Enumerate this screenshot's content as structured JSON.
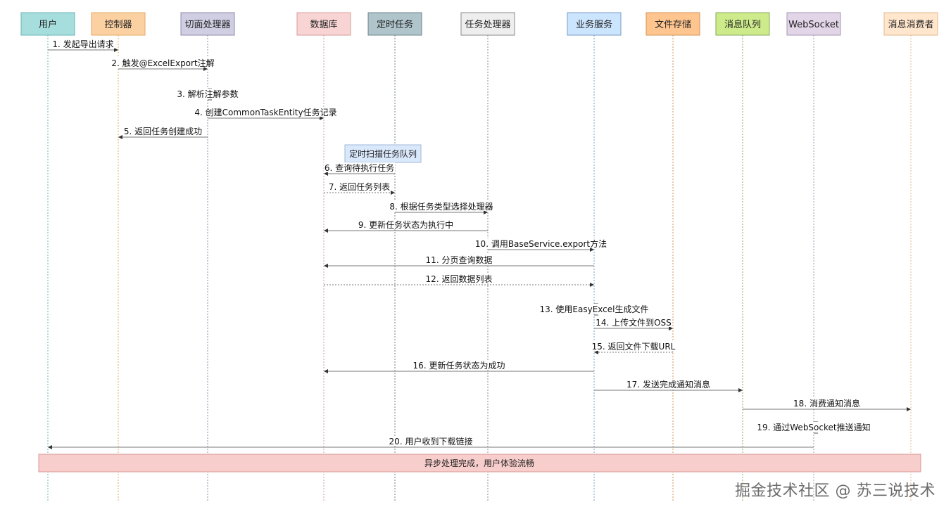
{
  "participants": [
    {
      "label": "用户",
      "fill": "#a6dede",
      "stroke": "#6ab3b3"
    },
    {
      "label": "控制器",
      "fill": "#fbd1a2",
      "stroke": "#e3a866"
    },
    {
      "label": "切面处理器",
      "fill": "#d0cee2",
      "stroke": "#8f8aa8"
    },
    {
      "label": "数据库",
      "fill": "#f9d4d4",
      "stroke": "#d69c9c"
    },
    {
      "label": "定时任务",
      "fill": "#b0c4cc",
      "stroke": "#6f858e"
    },
    {
      "label": "任务处理器",
      "fill": "#eeeeee",
      "stroke": "#8a8a8a"
    },
    {
      "label": "业务服务",
      "fill": "#cce5ff",
      "stroke": "#7a9cc4"
    },
    {
      "label": "文件存储",
      "fill": "#ffc58f",
      "stroke": "#d3935a"
    },
    {
      "label": "消息队列",
      "fill": "#cdeb8b",
      "stroke": "#8aa85a"
    },
    {
      "label": "WebSocket",
      "fill": "#e1d5e7",
      "stroke": "#a897b3"
    },
    {
      "label": "消息消费者",
      "fill": "#ffe6cc",
      "stroke": "#e0b98c"
    }
  ],
  "messages": [
    {
      "label": "1. 发起导出请求",
      "from": 0,
      "to": 1,
      "dashed": false
    },
    {
      "label": "2. 触发@ExcelExport注解",
      "from": 1,
      "to": 2,
      "dashed": false
    },
    {
      "label": "3. 解析注解参数",
      "from": 2,
      "to": 2,
      "dashed": false
    },
    {
      "label": "4. 创建CommonTaskEntity任务记录",
      "from": 2,
      "to": 3,
      "dashed": false
    },
    {
      "label": "5. 返回任务创建成功",
      "from": 2,
      "to": 1,
      "dashed": false
    },
    {
      "label": "6. 查询待执行任务",
      "from": 4,
      "to": 3,
      "dashed": false
    },
    {
      "label": "7. 返回任务列表",
      "from": 3,
      "to": 4,
      "dashed": true
    },
    {
      "label": "8. 根据任务类型选择处理器",
      "from": 4,
      "to": 5,
      "dashed": false
    },
    {
      "label": "9. 更新任务状态为执行中",
      "from": 5,
      "to": 3,
      "dashed": false
    },
    {
      "label": "10. 调用BaseService.export方法",
      "from": 5,
      "to": 6,
      "dashed": false
    },
    {
      "label": "11. 分页查询数据",
      "from": 6,
      "to": 3,
      "dashed": false
    },
    {
      "label": "12. 返回数据列表",
      "from": 3,
      "to": 6,
      "dashed": true
    },
    {
      "label": "13. 使用EasyExcel生成文件",
      "from": 6,
      "to": 6,
      "dashed": false
    },
    {
      "label": "14. 上传文件到OSS",
      "from": 6,
      "to": 7,
      "dashed": false
    },
    {
      "label": "15. 返回文件下载URL",
      "from": 7,
      "to": 6,
      "dashed": true
    },
    {
      "label": "16. 更新任务状态为成功",
      "from": 6,
      "to": 3,
      "dashed": false
    },
    {
      "label": "17. 发送完成通知消息",
      "from": 6,
      "to": 8,
      "dashed": false
    },
    {
      "label": "18. 消费通知消息",
      "from": 8,
      "to": 10,
      "dashed": false
    },
    {
      "label": "19. 通过WebSocket推送通知",
      "from": 9,
      "to": 9,
      "dashed": false
    },
    {
      "label": "20. 用户收到下载链接",
      "from": 9,
      "to": 0,
      "dashed": false
    }
  ],
  "note": {
    "label": "定时扫描任务队列",
    "fill": "#dae8fc",
    "stroke": "#9fb7d8"
  },
  "summary_bar": {
    "label": "异步处理完成，用户体验流畅",
    "fill": "#f8cecc",
    "stroke": "#d99a98"
  },
  "watermark": "掘金技术社区 @ 苏三说技术"
}
